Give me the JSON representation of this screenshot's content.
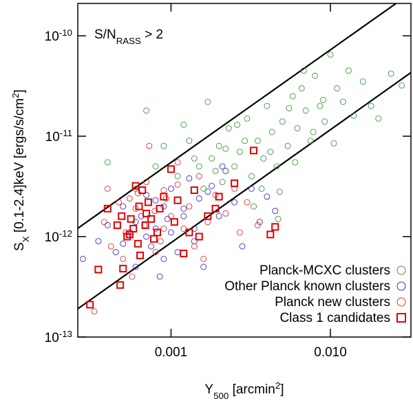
{
  "chart_data": {
    "type": "scatter",
    "xlabel": [
      [
        "Y",
        ""
      ],
      [
        "500",
        "sub"
      ],
      [
        " [arcmin",
        ""
      ],
      [
        "2",
        "sup"
      ],
      [
        "]",
        ""
      ]
    ],
    "ylabel": [
      [
        "S",
        ""
      ],
      [
        "X",
        "sub"
      ],
      [
        " [0.1-2.4]keV [ergs/s/cm",
        ""
      ],
      [
        "2",
        "sup"
      ],
      [
        "]",
        ""
      ]
    ],
    "annotation": [
      [
        "S/N",
        ""
      ],
      [
        "RASS",
        "sub"
      ],
      [
        " > 2",
        ""
      ]
    ],
    "xscale": "log",
    "yscale": "log",
    "xlim": [
      0.00026,
      0.032
    ],
    "ylim": [
      1e-13,
      2.1e-10
    ],
    "xticks": [
      0.001,
      {
        "value": 0.01,
        "label": "0.010"
      }
    ],
    "yticks": [
      {
        "value": 1e-13,
        "label": "10",
        "exponent": "-13"
      },
      {
        "value": 1e-12,
        "label": "10",
        "exponent": "-12"
      },
      {
        "value": 1e-11,
        "label": "10",
        "exponent": "-11"
      },
      {
        "value": 1e-10,
        "label": "10",
        "exponent": "-10"
      }
    ],
    "legend": "lower right",
    "lines": [
      {
        "color": "#000000",
        "x": [
          0.00026,
          0.0258
        ],
        "y": [
          1.21e-12,
          2.1e-10
        ]
      },
      {
        "color": "#000000",
        "x": [
          0.00026,
          0.032
        ],
        "y": [
          1.91e-13,
          4.3e-11
        ]
      }
    ],
    "series": [
      {
        "name": "Planck-MCXC clusters",
        "color": "#3a9a3a",
        "marker": "circle",
        "x": [
          0.0011,
          0.0013,
          0.0015,
          0.0016,
          0.0018,
          0.002,
          0.0021,
          0.0023,
          0.0025,
          0.0027,
          0.003,
          0.0032,
          0.0035,
          0.0038,
          0.004,
          0.0043,
          0.0046,
          0.005,
          0.0054,
          0.0058,
          0.0062,
          0.0066,
          0.007,
          0.0075,
          0.008,
          0.0086,
          0.0092,
          0.01,
          0.011,
          0.012,
          0.013,
          0.014,
          0.016,
          0.018,
          0.02,
          0.024,
          0.028,
          0.0012,
          0.0014,
          0.0017,
          0.0019,
          0.0022,
          0.0026,
          0.0029,
          0.0033,
          0.0037,
          0.0042,
          0.0048,
          0.0055,
          0.006,
          0.0068,
          0.0078,
          0.009,
          0.0105,
          0.0009,
          0.0008,
          0.0007,
          0.0006,
          0.0004,
          0.0047
        ],
        "values": [
          4e-12,
          9e-12,
          5e-12,
          3e-12,
          6e-12,
          8e-12,
          3.5e-12,
          1.2e-11,
          5e-12,
          7e-12,
          1.5e-11,
          4e-12,
          9e-12,
          6e-12,
          2e-11,
          1.1e-11,
          5e-12,
          1.4e-11,
          8e-12,
          2.5e-11,
          1.2e-11,
          3e-11,
          1.8e-11,
          9e-12,
          4e-11,
          2e-11,
          1.4e-11,
          6.5e-11,
          3e-11,
          2.2e-11,
          4.5e-11,
          1.6e-11,
          3.5e-11,
          2e-11,
          1.5e-11,
          4.2e-11,
          3.2e-11,
          1.3e-11,
          6e-12,
          2.2e-11,
          4.5e-12,
          7.5e-12,
          1.3e-11,
          9e-12,
          2e-12,
          3e-12,
          7e-12,
          2.8e-12,
          1.9e-11,
          5.5e-12,
          4.5e-11,
          1.1e-11,
          2.3e-11,
          8.5e-12,
          8e-12,
          5e-12,
          1.8e-11,
          3e-12,
          5.5e-12,
          1.5e-12
        ]
      },
      {
        "name": "Other Planck known clusters",
        "color": "#3a2ec8",
        "marker": "circle",
        "x": [
          0.00028,
          0.00035,
          0.0004,
          0.00045,
          0.0005,
          0.00055,
          0.0006,
          0.00065,
          0.0007,
          0.00075,
          0.0008,
          0.00085,
          0.0009,
          0.00095,
          0.001,
          0.0011,
          0.0012,
          0.0013,
          0.0014,
          0.0015,
          0.0016,
          0.0018,
          0.002,
          0.0022,
          0.0025,
          0.0028,
          0.0032,
          0.0036,
          0.004,
          0.0045,
          0.0005,
          0.0006,
          0.0007,
          0.0008,
          0.0009,
          0.001,
          0.0012,
          0.0014,
          0.0017,
          0.0021
        ],
        "values": [
          6e-13,
          9e-13,
          1.3e-12,
          7e-13,
          2e-12,
          1.1e-12,
          5e-13,
          1.6e-12,
          2.6e-12,
          8e-13,
          1.2e-12,
          4e-13,
          2e-12,
          1.5e-12,
          3e-12,
          7e-13,
          1.9e-12,
          3.8e-12,
          1.2e-12,
          2.4e-12,
          5e-13,
          3.2e-12,
          1.6e-12,
          4.5e-12,
          2.2e-12,
          8e-13,
          3e-12,
          1.4e-12,
          2.5e-12,
          1.8e-12,
          8.5e-13,
          1.4e-12,
          1e-12,
          2.3e-12,
          6e-13,
          1.1e-12,
          1.6e-12,
          9e-13,
          2.8e-12,
          5e-12
        ]
      },
      {
        "name": "Planck new clusters",
        "color": "#e03232",
        "marker": "circle",
        "x": [
          0.00033,
          0.00038,
          0.00042,
          0.00047,
          0.00052,
          0.00057,
          0.00062,
          0.00068,
          0.00073,
          0.00079,
          0.00086,
          0.00093,
          0.001,
          0.0011,
          0.0012,
          0.0013,
          0.0015,
          0.0017,
          0.0019,
          0.0022,
          0.0025,
          0.003,
          0.0035,
          0.0005,
          0.0006,
          0.0007,
          0.0008,
          0.0009,
          0.0011,
          0.0014,
          0.0004,
          0.00055,
          0.0016,
          0.0027,
          0.0009
        ],
        "values": [
          1.8e-13,
          1.4e-12,
          8e-13,
          2.2e-12,
          1.1e-12,
          4e-13,
          2.7e-12,
          1.3e-12,
          8e-12,
          1.8e-12,
          9e-13,
          2.4e-12,
          1.6e-12,
          3.3e-12,
          1.2e-12,
          2e-12,
          4e-12,
          1.4e-12,
          2.6e-12,
          1.7e-12,
          3e-12,
          2.2e-12,
          1.3e-12,
          6e-13,
          1.9e-12,
          3.5e-12,
          7e-13,
          2.9e-12,
          5.5e-12,
          8e-13,
          3e-12,
          2.4e-12,
          6e-13,
          1.1e-12,
          1.2e-12
        ]
      },
      {
        "name": "Class 1 candidates",
        "color": "#e00000",
        "marker": "square",
        "x": [
          0.00031,
          0.00035,
          0.0004,
          0.00048,
          0.0005,
          0.00046,
          0.00049,
          0.00053,
          0.00056,
          0.00058,
          0.0006,
          0.00063,
          0.00064,
          0.00066,
          0.00069,
          0.00072,
          0.00075,
          0.00078,
          0.00082,
          0.00085,
          0.0009,
          0.00062,
          0.00055,
          0.0007,
          0.00105,
          0.0011,
          0.0012,
          0.0013,
          0.0014,
          0.0015,
          0.0017,
          0.0019,
          0.002,
          0.0025,
          0.0033,
          0.0042,
          0.0045,
          0.001
        ],
        "values": [
          2.1e-13,
          4.7e-13,
          1.9e-12,
          3.3e-13,
          4.8e-13,
          1.3e-12,
          1.6e-12,
          1e-12,
          1.5e-12,
          1.2e-12,
          3.2e-12,
          2e-12,
          6.5e-13,
          2.9e-12,
          1.3e-12,
          2.2e-12,
          1.5e-12,
          9.5e-13,
          1.1e-12,
          1.9e-12,
          2.5e-12,
          8.5e-13,
          1.05e-12,
          1.7e-12,
          1.4e-12,
          2.3e-12,
          6.8e-13,
          1.1e-12,
          2.9e-12,
          1e-12,
          1.6e-12,
          1.9e-12,
          2.5e-12,
          3.4e-12,
          7.2e-12,
          1.05e-12,
          1.25e-12,
          4.7e-12
        ]
      }
    ]
  }
}
